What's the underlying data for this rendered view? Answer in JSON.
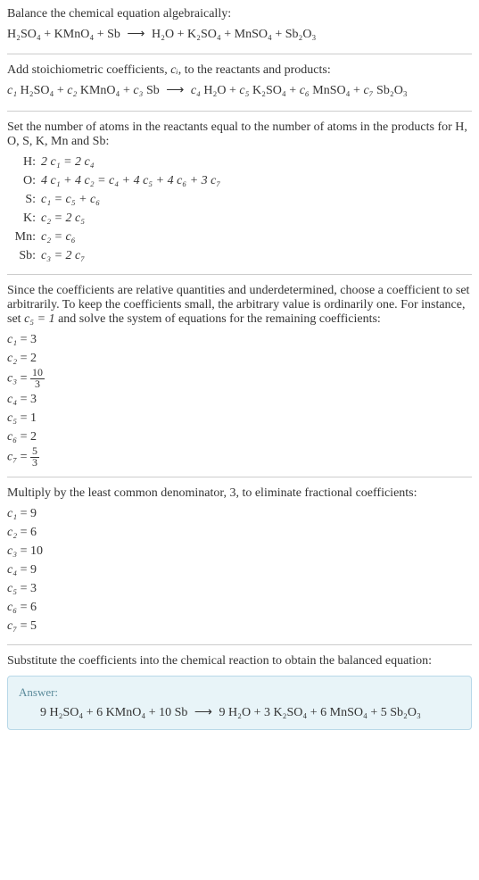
{
  "intro": {
    "line1": "Balance the chemical equation algebraically:",
    "eq_lhs": "H₂SO₄ + KMnO₄ + Sb",
    "arrow": "⟶",
    "eq_rhs": "H₂O + K₂SO₄ + MnSO₄ + Sb₂O₃"
  },
  "stoich": {
    "text": "Add stoichiometric coefficients, ",
    "ci": "cᵢ",
    "text2": ", to the reactants and products:",
    "eq": {
      "c1": "c₁",
      "r1": "H₂SO₄",
      "c2": "c₂",
      "r2": "KMnO₄",
      "c3": "c₃",
      "r3": "Sb",
      "arrow": "⟶",
      "c4": "c₄",
      "p1": "H₂O",
      "c5": "c₅",
      "p2": "K₂SO₄",
      "c6": "c₆",
      "p3": "MnSO₄",
      "c7": "c₇",
      "p4": "Sb₂O₃"
    }
  },
  "atoms": {
    "text": "Set the number of atoms in the reactants equal to the number of atoms in the products for H, O, S, K, Mn and Sb:",
    "rows": [
      {
        "label": "H:",
        "eq": "2 c₁ = 2 c₄"
      },
      {
        "label": "O:",
        "eq": "4 c₁ + 4 c₂ = c₄ + 4 c₅ + 4 c₆ + 3 c₇"
      },
      {
        "label": "S:",
        "eq": "c₁ = c₅ + c₆"
      },
      {
        "label": "K:",
        "eq": "c₂ = 2 c₅"
      },
      {
        "label": "Mn:",
        "eq": "c₂ = c₆"
      },
      {
        "label": "Sb:",
        "eq": "c₃ = 2 c₇"
      }
    ]
  },
  "solve": {
    "text1": "Since the coefficients are relative quantities and underdetermined, choose a coefficient to set arbitrarily. To keep the coefficients small, the arbitrary value is ordinarily one. For instance, set ",
    "c5": "c₅ = 1",
    "text2": " and solve the system of equations for the remaining coefficients:",
    "coefs": [
      {
        "c": "c₁",
        "v": "3",
        "frac": null
      },
      {
        "c": "c₂",
        "v": "2",
        "frac": null
      },
      {
        "c": "c₃",
        "v": "",
        "frac": {
          "num": "10",
          "den": "3"
        }
      },
      {
        "c": "c₄",
        "v": "3",
        "frac": null
      },
      {
        "c": "c₅",
        "v": "1",
        "frac": null
      },
      {
        "c": "c₆",
        "v": "2",
        "frac": null
      },
      {
        "c": "c₇",
        "v": "",
        "frac": {
          "num": "5",
          "den": "3"
        }
      }
    ]
  },
  "multiply": {
    "text": "Multiply by the least common denominator, 3, to eliminate fractional coefficients:",
    "coefs": [
      {
        "c": "c₁",
        "v": "9"
      },
      {
        "c": "c₂",
        "v": "6"
      },
      {
        "c": "c₃",
        "v": "10"
      },
      {
        "c": "c₄",
        "v": "9"
      },
      {
        "c": "c₅",
        "v": "3"
      },
      {
        "c": "c₆",
        "v": "6"
      },
      {
        "c": "c₇",
        "v": "5"
      }
    ]
  },
  "substitute": {
    "text": "Substitute the coefficients into the chemical reaction to obtain the balanced equation:"
  },
  "answer": {
    "label": "Answer:",
    "lhs": "9 H₂SO₄ + 6 KMnO₄ + 10 Sb",
    "arrow": "⟶",
    "rhs": "9 H₂O + 3 K₂SO₄ + 6 MnSO₄ + 5 Sb₂O₃"
  },
  "colors": {
    "text": "#333333",
    "hr": "#cccccc",
    "answer_bg": "#e8f4f8",
    "answer_border": "#b8d8e8",
    "answer_label": "#5a8a9a"
  }
}
